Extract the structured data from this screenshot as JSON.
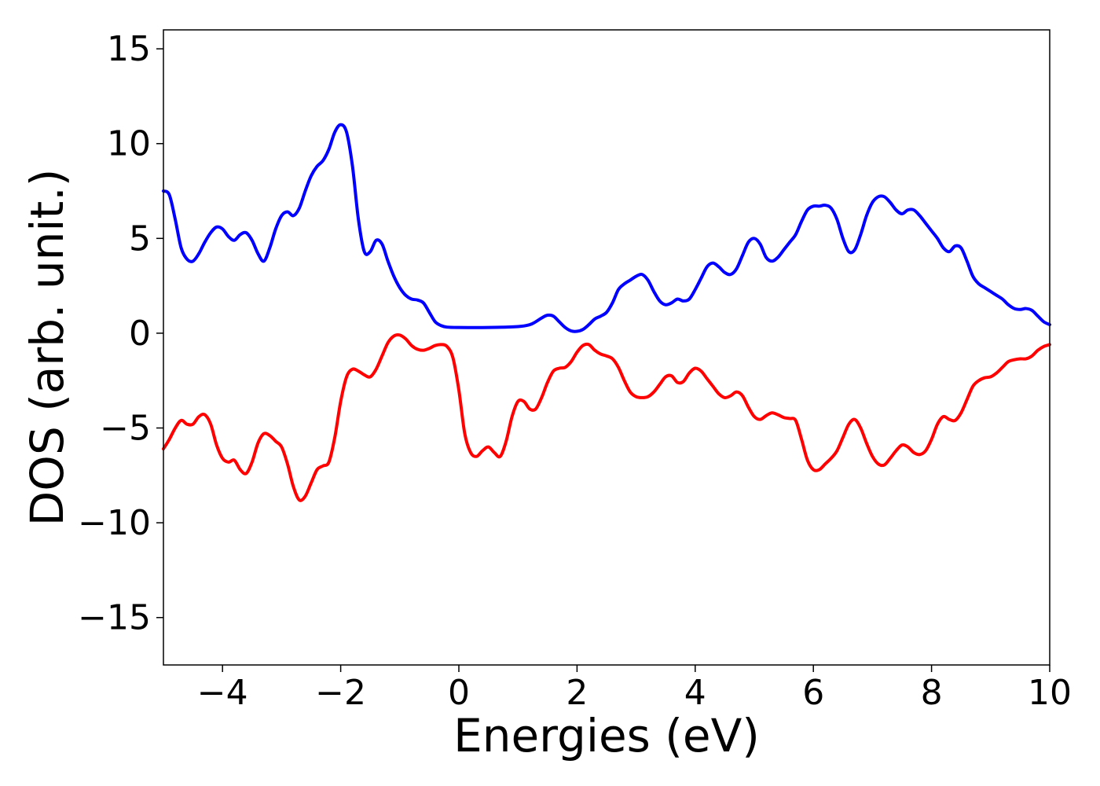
{
  "chart_data": {
    "type": "line",
    "title": "",
    "xlabel": "Energies (eV)",
    "ylabel": "DOS (arb. unit.)",
    "xlim": [
      -5,
      10
    ],
    "ylim": [
      -17.5,
      16
    ],
    "grid": false,
    "legend": "none",
    "x_ticks": [
      -4,
      -2,
      0,
      2,
      4,
      6,
      8,
      10
    ],
    "x_tick_labels": [
      "−4",
      "−2",
      "0",
      "2",
      "4",
      "6",
      "8",
      "10"
    ],
    "y_ticks": [
      15,
      10,
      5,
      0,
      -5,
      -10,
      -15
    ],
    "y_tick_labels": [
      "15",
      "10",
      "5",
      "0",
      "−5",
      "−10",
      "−15"
    ],
    "series": [
      {
        "color": "#0000ff",
        "points": [
          [
            -5.0,
            7.5
          ],
          [
            -4.9,
            7.3
          ],
          [
            -4.8,
            6.0
          ],
          [
            -4.7,
            4.5
          ],
          [
            -4.6,
            3.9
          ],
          [
            -4.5,
            3.8
          ],
          [
            -4.4,
            4.2
          ],
          [
            -4.3,
            4.8
          ],
          [
            -4.2,
            5.3
          ],
          [
            -4.1,
            5.6
          ],
          [
            -4.0,
            5.5
          ],
          [
            -3.9,
            5.1
          ],
          [
            -3.8,
            4.9
          ],
          [
            -3.7,
            5.2
          ],
          [
            -3.6,
            5.3
          ],
          [
            -3.5,
            4.9
          ],
          [
            -3.4,
            4.2
          ],
          [
            -3.3,
            3.8
          ],
          [
            -3.2,
            4.5
          ],
          [
            -3.1,
            5.5
          ],
          [
            -3.0,
            6.2
          ],
          [
            -2.9,
            6.4
          ],
          [
            -2.8,
            6.2
          ],
          [
            -2.7,
            6.6
          ],
          [
            -2.6,
            7.5
          ],
          [
            -2.5,
            8.3
          ],
          [
            -2.4,
            8.8
          ],
          [
            -2.3,
            9.1
          ],
          [
            -2.2,
            9.7
          ],
          [
            -2.1,
            10.6
          ],
          [
            -2.0,
            11.0
          ],
          [
            -1.9,
            10.6
          ],
          [
            -1.8,
            8.8
          ],
          [
            -1.7,
            6.0
          ],
          [
            -1.6,
            4.3
          ],
          [
            -1.5,
            4.3
          ],
          [
            -1.4,
            4.9
          ],
          [
            -1.3,
            4.7
          ],
          [
            -1.2,
            3.8
          ],
          [
            -1.1,
            3.0
          ],
          [
            -1.0,
            2.4
          ],
          [
            -0.9,
            2.0
          ],
          [
            -0.8,
            1.8
          ],
          [
            -0.7,
            1.75
          ],
          [
            -0.6,
            1.6
          ],
          [
            -0.5,
            1.1
          ],
          [
            -0.4,
            0.6
          ],
          [
            -0.3,
            0.4
          ],
          [
            -0.2,
            0.32
          ],
          [
            0.0,
            0.3
          ],
          [
            0.5,
            0.3
          ],
          [
            1.0,
            0.35
          ],
          [
            1.2,
            0.45
          ],
          [
            1.3,
            0.6
          ],
          [
            1.4,
            0.8
          ],
          [
            1.5,
            0.95
          ],
          [
            1.6,
            0.9
          ],
          [
            1.7,
            0.6
          ],
          [
            1.8,
            0.3
          ],
          [
            1.9,
            0.12
          ],
          [
            2.0,
            0.1
          ],
          [
            2.1,
            0.2
          ],
          [
            2.2,
            0.45
          ],
          [
            2.3,
            0.75
          ],
          [
            2.4,
            0.9
          ],
          [
            2.5,
            1.1
          ],
          [
            2.6,
            1.6
          ],
          [
            2.7,
            2.3
          ],
          [
            2.8,
            2.6
          ],
          [
            2.9,
            2.8
          ],
          [
            3.0,
            3.0
          ],
          [
            3.1,
            3.1
          ],
          [
            3.2,
            2.8
          ],
          [
            3.3,
            2.2
          ],
          [
            3.4,
            1.7
          ],
          [
            3.5,
            1.5
          ],
          [
            3.6,
            1.6
          ],
          [
            3.7,
            1.8
          ],
          [
            3.8,
            1.7
          ],
          [
            3.9,
            1.8
          ],
          [
            4.0,
            2.3
          ],
          [
            4.1,
            2.9
          ],
          [
            4.2,
            3.5
          ],
          [
            4.3,
            3.7
          ],
          [
            4.4,
            3.5
          ],
          [
            4.5,
            3.2
          ],
          [
            4.6,
            3.1
          ],
          [
            4.7,
            3.4
          ],
          [
            4.8,
            4.1
          ],
          [
            4.9,
            4.8
          ],
          [
            5.0,
            5.0
          ],
          [
            5.1,
            4.7
          ],
          [
            5.2,
            4.0
          ],
          [
            5.3,
            3.8
          ],
          [
            5.4,
            4.0
          ],
          [
            5.5,
            4.4
          ],
          [
            5.6,
            4.8
          ],
          [
            5.7,
            5.2
          ],
          [
            5.8,
            5.9
          ],
          [
            5.9,
            6.5
          ],
          [
            6.0,
            6.7
          ],
          [
            6.1,
            6.7
          ],
          [
            6.2,
            6.75
          ],
          [
            6.3,
            6.6
          ],
          [
            6.4,
            6.0
          ],
          [
            6.5,
            5.0
          ],
          [
            6.6,
            4.3
          ],
          [
            6.7,
            4.4
          ],
          [
            6.8,
            5.2
          ],
          [
            6.9,
            6.2
          ],
          [
            7.0,
            6.9
          ],
          [
            7.1,
            7.2
          ],
          [
            7.2,
            7.2
          ],
          [
            7.3,
            6.9
          ],
          [
            7.4,
            6.5
          ],
          [
            7.5,
            6.3
          ],
          [
            7.6,
            6.5
          ],
          [
            7.7,
            6.5
          ],
          [
            7.8,
            6.2
          ],
          [
            7.9,
            5.8
          ],
          [
            8.0,
            5.4
          ],
          [
            8.1,
            5.0
          ],
          [
            8.2,
            4.5
          ],
          [
            8.3,
            4.3
          ],
          [
            8.4,
            4.6
          ],
          [
            8.5,
            4.5
          ],
          [
            8.6,
            3.8
          ],
          [
            8.7,
            3.0
          ],
          [
            8.8,
            2.6
          ],
          [
            8.9,
            2.4
          ],
          [
            9.0,
            2.2
          ],
          [
            9.1,
            2.0
          ],
          [
            9.2,
            1.8
          ],
          [
            9.3,
            1.5
          ],
          [
            9.4,
            1.3
          ],
          [
            9.5,
            1.25
          ],
          [
            9.6,
            1.3
          ],
          [
            9.7,
            1.2
          ],
          [
            9.8,
            0.9
          ],
          [
            9.9,
            0.6
          ],
          [
            10.0,
            0.45
          ]
        ]
      },
      {
        "color": "#ff0000",
        "points": [
          [
            -5.0,
            -6.1
          ],
          [
            -4.9,
            -5.6
          ],
          [
            -4.8,
            -5.0
          ],
          [
            -4.7,
            -4.6
          ],
          [
            -4.6,
            -4.8
          ],
          [
            -4.5,
            -4.8
          ],
          [
            -4.4,
            -4.4
          ],
          [
            -4.3,
            -4.3
          ],
          [
            -4.2,
            -4.8
          ],
          [
            -4.1,
            -5.9
          ],
          [
            -4.0,
            -6.6
          ],
          [
            -3.9,
            -6.8
          ],
          [
            -3.8,
            -6.7
          ],
          [
            -3.7,
            -7.2
          ],
          [
            -3.6,
            -7.4
          ],
          [
            -3.5,
            -6.8
          ],
          [
            -3.4,
            -5.8
          ],
          [
            -3.3,
            -5.3
          ],
          [
            -3.2,
            -5.4
          ],
          [
            -3.1,
            -5.7
          ],
          [
            -3.0,
            -6.0
          ],
          [
            -2.9,
            -6.9
          ],
          [
            -2.8,
            -8.1
          ],
          [
            -2.7,
            -8.8
          ],
          [
            -2.6,
            -8.6
          ],
          [
            -2.5,
            -7.9
          ],
          [
            -2.4,
            -7.2
          ],
          [
            -2.3,
            -7.0
          ],
          [
            -2.2,
            -6.8
          ],
          [
            -2.1,
            -5.5
          ],
          [
            -2.0,
            -3.6
          ],
          [
            -1.9,
            -2.3
          ],
          [
            -1.8,
            -1.9
          ],
          [
            -1.7,
            -2.0
          ],
          [
            -1.6,
            -2.2
          ],
          [
            -1.5,
            -2.3
          ],
          [
            -1.4,
            -1.9
          ],
          [
            -1.3,
            -1.2
          ],
          [
            -1.2,
            -0.5
          ],
          [
            -1.1,
            -0.15
          ],
          [
            -1.0,
            -0.1
          ],
          [
            -0.9,
            -0.3
          ],
          [
            -0.8,
            -0.65
          ],
          [
            -0.7,
            -0.85
          ],
          [
            -0.6,
            -0.9
          ],
          [
            -0.5,
            -0.8
          ],
          [
            -0.4,
            -0.65
          ],
          [
            -0.3,
            -0.6
          ],
          [
            -0.2,
            -0.7
          ],
          [
            -0.1,
            -1.3
          ],
          [
            0.0,
            -3.0
          ],
          [
            0.1,
            -5.3
          ],
          [
            0.2,
            -6.3
          ],
          [
            0.3,
            -6.5
          ],
          [
            0.4,
            -6.2
          ],
          [
            0.5,
            -6.0
          ],
          [
            0.6,
            -6.3
          ],
          [
            0.7,
            -6.5
          ],
          [
            0.8,
            -5.7
          ],
          [
            0.9,
            -4.4
          ],
          [
            1.0,
            -3.6
          ],
          [
            1.1,
            -3.6
          ],
          [
            1.2,
            -4.0
          ],
          [
            1.3,
            -4.0
          ],
          [
            1.4,
            -3.4
          ],
          [
            1.5,
            -2.6
          ],
          [
            1.6,
            -2.0
          ],
          [
            1.7,
            -1.85
          ],
          [
            1.8,
            -1.8
          ],
          [
            1.9,
            -1.5
          ],
          [
            2.0,
            -1.0
          ],
          [
            2.1,
            -0.65
          ],
          [
            2.2,
            -0.6
          ],
          [
            2.3,
            -0.9
          ],
          [
            2.4,
            -1.1
          ],
          [
            2.5,
            -1.2
          ],
          [
            2.6,
            -1.35
          ],
          [
            2.7,
            -1.8
          ],
          [
            2.8,
            -2.5
          ],
          [
            2.9,
            -3.1
          ],
          [
            3.0,
            -3.35
          ],
          [
            3.1,
            -3.4
          ],
          [
            3.2,
            -3.35
          ],
          [
            3.3,
            -3.1
          ],
          [
            3.4,
            -2.7
          ],
          [
            3.5,
            -2.3
          ],
          [
            3.6,
            -2.25
          ],
          [
            3.7,
            -2.6
          ],
          [
            3.8,
            -2.55
          ],
          [
            3.9,
            -2.1
          ],
          [
            4.0,
            -1.85
          ],
          [
            4.1,
            -2.0
          ],
          [
            4.2,
            -2.4
          ],
          [
            4.3,
            -2.8
          ],
          [
            4.4,
            -3.2
          ],
          [
            4.5,
            -3.4
          ],
          [
            4.6,
            -3.3
          ],
          [
            4.7,
            -3.1
          ],
          [
            4.8,
            -3.3
          ],
          [
            4.9,
            -3.9
          ],
          [
            5.0,
            -4.4
          ],
          [
            5.1,
            -4.55
          ],
          [
            5.2,
            -4.35
          ],
          [
            5.3,
            -4.2
          ],
          [
            5.4,
            -4.3
          ],
          [
            5.5,
            -4.45
          ],
          [
            5.6,
            -4.5
          ],
          [
            5.7,
            -4.6
          ],
          [
            5.8,
            -5.6
          ],
          [
            5.9,
            -6.7
          ],
          [
            6.0,
            -7.2
          ],
          [
            6.1,
            -7.2
          ],
          [
            6.2,
            -6.9
          ],
          [
            6.3,
            -6.6
          ],
          [
            6.4,
            -6.2
          ],
          [
            6.5,
            -5.5
          ],
          [
            6.6,
            -4.8
          ],
          [
            6.7,
            -4.55
          ],
          [
            6.8,
            -5.0
          ],
          [
            6.9,
            -5.8
          ],
          [
            7.0,
            -6.5
          ],
          [
            7.1,
            -6.9
          ],
          [
            7.2,
            -6.95
          ],
          [
            7.3,
            -6.6
          ],
          [
            7.4,
            -6.2
          ],
          [
            7.5,
            -5.9
          ],
          [
            7.6,
            -6.0
          ],
          [
            7.7,
            -6.3
          ],
          [
            7.8,
            -6.4
          ],
          [
            7.9,
            -6.2
          ],
          [
            8.0,
            -5.6
          ],
          [
            8.1,
            -4.8
          ],
          [
            8.2,
            -4.4
          ],
          [
            8.3,
            -4.55
          ],
          [
            8.4,
            -4.6
          ],
          [
            8.5,
            -4.2
          ],
          [
            8.6,
            -3.5
          ],
          [
            8.7,
            -2.8
          ],
          [
            8.8,
            -2.5
          ],
          [
            8.9,
            -2.35
          ],
          [
            9.0,
            -2.3
          ],
          [
            9.1,
            -2.1
          ],
          [
            9.2,
            -1.8
          ],
          [
            9.3,
            -1.5
          ],
          [
            9.4,
            -1.4
          ],
          [
            9.5,
            -1.35
          ],
          [
            9.6,
            -1.35
          ],
          [
            9.7,
            -1.2
          ],
          [
            9.8,
            -0.9
          ],
          [
            9.9,
            -0.7
          ],
          [
            10.0,
            -0.6
          ]
        ]
      }
    ]
  }
}
